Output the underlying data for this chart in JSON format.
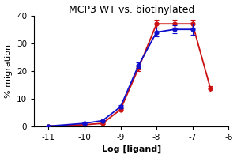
{
  "title": "MCP3 WT vs. biotinylated",
  "xlabel": "Log [ligand]",
  "ylabel": "% migration",
  "blue_x": [
    -11,
    -10,
    -9.5,
    -9,
    -8.5,
    -8,
    -7.5,
    -7
  ],
  "blue_y": [
    0,
    1,
    2,
    7,
    22,
    34,
    35,
    35
  ],
  "blue_err": [
    0.2,
    0.3,
    0.3,
    0.5,
    1.0,
    1.5,
    1.5,
    2.0
  ],
  "red_x": [
    -11,
    -10,
    -9.5,
    -9,
    -8.5,
    -8,
    -7.5,
    -7,
    -6.5
  ],
  "red_y": [
    0,
    0.5,
    1,
    6,
    21,
    37,
    37,
    37,
    13.5
  ],
  "red_err": [
    0.2,
    0.3,
    0.3,
    0.5,
    1.0,
    1.5,
    1.5,
    1.5,
    1.0
  ],
  "blue_color": "#1010cc",
  "red_color": "#cc1010",
  "ylim": [
    0,
    40
  ],
  "yticks": [
    0,
    10,
    20,
    30,
    40
  ],
  "xticks": [
    -11,
    -10,
    -9,
    -8,
    -7,
    -6
  ],
  "xlim": [
    -11.4,
    -6.0
  ],
  "title_fontsize": 9,
  "label_fontsize": 8,
  "tick_fontsize": 7.5
}
